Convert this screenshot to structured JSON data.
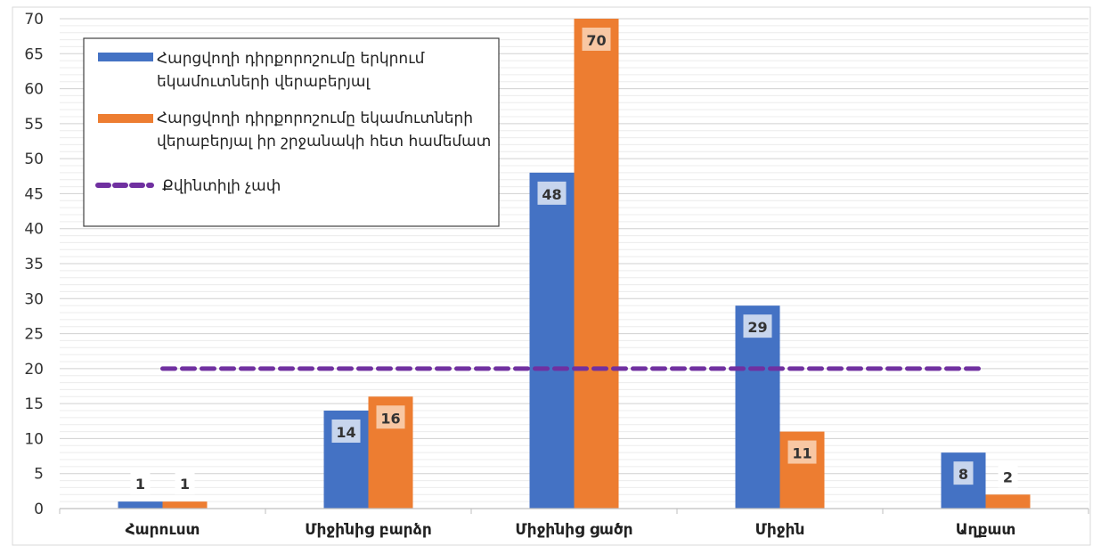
{
  "chart_data": {
    "type": "bar",
    "categories": [
      "Հարուստ",
      "Միջինից բարձր",
      "Միջինից ցածր",
      "Միջին",
      "Աղքատ"
    ],
    "series": [
      {
        "name": "Հարցվողի դիրքորոշումը երկրում եկամուտների վերաբերյալ",
        "values": [
          1,
          14,
          48,
          29,
          8
        ],
        "color": "#4472C4"
      },
      {
        "name": "Հարցվողի դիրքորոշումը եկամուտների վերաբերյալ իր շրջանակի հետ համեմատ",
        "values": [
          1,
          16,
          70,
          11,
          2
        ],
        "color": "#ED7D31"
      }
    ],
    "reference_line": {
      "name": "Քվինտիլի չափ",
      "value": 20,
      "style": "dashed",
      "color": "#7030A0"
    },
    "title": "",
    "xlabel": "",
    "ylabel": "",
    "ylim": [
      0,
      70
    ],
    "yticks": [
      0,
      5,
      10,
      15,
      20,
      25,
      30,
      35,
      40,
      45,
      50,
      55,
      60,
      65,
      70
    ],
    "grid": true,
    "data_labels": true,
    "legend_position": "top-left"
  }
}
